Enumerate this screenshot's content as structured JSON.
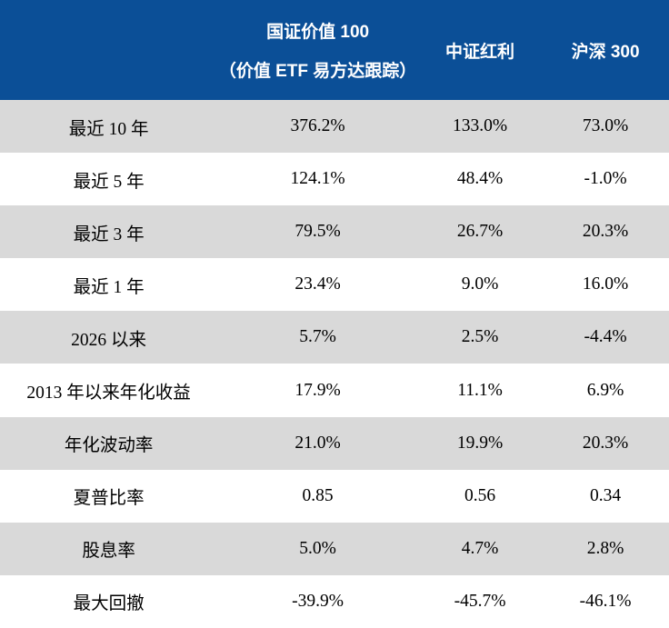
{
  "table": {
    "header": {
      "col1": "",
      "col2_line1": "国证价值 100",
      "col2_line2": "（价值 ETF 易方达跟踪）",
      "col3": "中证红利",
      "col4": "沪深 300"
    },
    "rows": [
      {
        "label": "最近 10 年",
        "values": [
          "376.2%",
          "133.0%",
          "73.0%"
        ]
      },
      {
        "label": "最近 5 年",
        "values": [
          "124.1%",
          "48.4%",
          "-1.0%"
        ]
      },
      {
        "label": "最近 3 年",
        "values": [
          "79.5%",
          "26.7%",
          "20.3%"
        ]
      },
      {
        "label": "最近 1 年",
        "values": [
          "23.4%",
          "9.0%",
          "16.0%"
        ]
      },
      {
        "label": "2026 以来",
        "values": [
          "5.7%",
          "2.5%",
          "-4.4%"
        ]
      },
      {
        "label": "2013 年以来年化收益",
        "values": [
          "17.9%",
          "11.1%",
          "6.9%"
        ]
      },
      {
        "label": "年化波动率",
        "values": [
          "21.0%",
          "19.9%",
          "20.3%"
        ]
      },
      {
        "label": "夏普比率",
        "values": [
          "0.85",
          "0.56",
          "0.34"
        ]
      },
      {
        "label": "股息率",
        "values": [
          "5.0%",
          "4.7%",
          "2.8%"
        ]
      },
      {
        "label": "最大回撤",
        "values": [
          "-39.9%",
          "-45.7%",
          "-46.1%"
        ]
      }
    ],
    "colors": {
      "header_bg": "#0b4f97",
      "header_text": "#ffffff",
      "row_alt_bg": "#d9d9d9",
      "row_bg": "#ffffff",
      "body_text": "#000000"
    }
  },
  "chart_data": {
    "type": "table",
    "title": "",
    "columns": [
      "",
      "国证价值 100（价值 ETF 易方达跟踪）",
      "中证红利",
      "沪深 300"
    ],
    "categories": [
      "最近 10 年",
      "最近 5 年",
      "最近 3 年",
      "最近 1 年",
      "2026 以来",
      "2013 年以来年化收益",
      "年化波动率",
      "夏普比率",
      "股息率",
      "最大回撤"
    ],
    "series": [
      {
        "name": "国证价值 100（价值 ETF 易方达跟踪）",
        "values": [
          "376.2%",
          "124.1%",
          "79.5%",
          "23.4%",
          "5.7%",
          "17.9%",
          "21.0%",
          "0.85",
          "5.0%",
          "-39.9%"
        ]
      },
      {
        "name": "中证红利",
        "values": [
          "133.0%",
          "48.4%",
          "26.7%",
          "9.0%",
          "2.5%",
          "11.1%",
          "19.9%",
          "0.56",
          "4.7%",
          "-45.7%"
        ]
      },
      {
        "name": "沪深 300",
        "values": [
          "73.0%",
          "-1.0%",
          "20.3%",
          "16.0%",
          "-4.4%",
          "6.9%",
          "20.3%",
          "0.34",
          "2.8%",
          "-46.1%"
        ]
      }
    ],
    "legend_position": "top",
    "grid": false
  }
}
